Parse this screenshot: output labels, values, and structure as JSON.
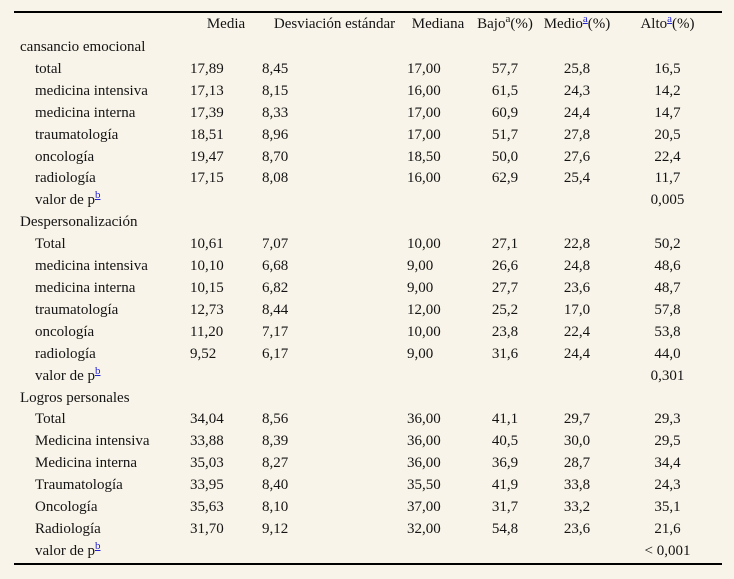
{
  "page": {
    "background_color": "#f8f4e9",
    "text_color": "#141414",
    "link_color": "#2222cc",
    "rule_color": "#000000"
  },
  "table": {
    "p_label": "valor de p",
    "p_sup": "b",
    "header": {
      "row_label": "",
      "columns": [
        {
          "label": "Media",
          "sup": null,
          "suffix": "",
          "sup_is_link": false
        },
        {
          "label": "Desviación estándar",
          "sup": null,
          "suffix": "",
          "sup_is_link": false
        },
        {
          "label": "Mediana",
          "sup": null,
          "suffix": "",
          "sup_is_link": false
        },
        {
          "label": "Bajo",
          "sup": "a",
          "suffix": "(%)",
          "sup_is_link": false
        },
        {
          "label": "Medio",
          "sup": "a",
          "suffix": "(%)",
          "sup_is_link": true
        },
        {
          "label": "Alto",
          "sup": "a",
          "suffix": "(%)",
          "sup_is_link": true
        }
      ]
    },
    "sections": [
      {
        "title": "cansancio emocional",
        "rows": [
          {
            "label": "total",
            "media": "17,89",
            "sd": "8,45",
            "mediana": "17,00",
            "bajo": "57,7",
            "medio": "25,8",
            "alto": "16,5"
          },
          {
            "label": "medicina intensiva",
            "media": "17,13",
            "sd": "8,15",
            "mediana": "16,00",
            "bajo": "61,5",
            "medio": "24,3",
            "alto": "14,2"
          },
          {
            "label": "medicina interna",
            "media": "17,39",
            "sd": "8,33",
            "mediana": "17,00",
            "bajo": "60,9",
            "medio": "24,4",
            "alto": "14,7"
          },
          {
            "label": "traumatología",
            "media": "18,51",
            "sd": "8,96",
            "mediana": "17,00",
            "bajo": "51,7",
            "medio": "27,8",
            "alto": "20,5"
          },
          {
            "label": "oncología",
            "media": "19,47",
            "sd": "8,70",
            "mediana": "18,50",
            "bajo": "50,0",
            "medio": "27,6",
            "alto": "22,4"
          },
          {
            "label": "radiología",
            "media": "17,15",
            "sd": "8,08",
            "mediana": "16,00",
            "bajo": "62,9",
            "medio": "25,4",
            "alto": "11,7"
          }
        ],
        "p_value": "0,005"
      },
      {
        "title": "Despersonalización",
        "rows": [
          {
            "label": "Total",
            "media": "10,61",
            "sd": "7,07",
            "mediana": "10,00",
            "bajo": "27,1",
            "medio": "22,8",
            "alto": "50,2"
          },
          {
            "label": "medicina intensiva",
            "media": "10,10",
            "sd": "6,68",
            "mediana": "9,00",
            "bajo": "26,6",
            "medio": "24,8",
            "alto": "48,6"
          },
          {
            "label": "medicina interna",
            "media": "10,15",
            "sd": "6,82",
            "mediana": "9,00",
            "bajo": "27,7",
            "medio": "23,6",
            "alto": "48,7"
          },
          {
            "label": "traumatología",
            "media": "12,73",
            "sd": "8,44",
            "mediana": "12,00",
            "bajo": "25,2",
            "medio": "17,0",
            "alto": "57,8"
          },
          {
            "label": "oncología",
            "media": "11,20",
            "sd": "7,17",
            "mediana": "10,00",
            "bajo": "23,8",
            "medio": "22,4",
            "alto": "53,8"
          },
          {
            "label": "radiología",
            "media": "9,52",
            "sd": "6,17",
            "mediana": "9,00",
            "bajo": "31,6",
            "medio": "24,4",
            "alto": "44,0"
          }
        ],
        "p_value": "0,301"
      },
      {
        "title": "Logros personales",
        "rows": [
          {
            "label": "Total",
            "media": "34,04",
            "sd": "8,56",
            "mediana": "36,00",
            "bajo": "41,1",
            "medio": "29,7",
            "alto": "29,3"
          },
          {
            "label": "Medicina intensiva",
            "media": "33,88",
            "sd": "8,39",
            "mediana": "36,00",
            "bajo": "40,5",
            "medio": "30,0",
            "alto": "29,5"
          },
          {
            "label": "Medicina interna",
            "media": "35,03",
            "sd": "8,27",
            "mediana": "36,00",
            "bajo": "36,9",
            "medio": "28,7",
            "alto": "34,4"
          },
          {
            "label": "Traumatología",
            "media": "33,95",
            "sd": "8,40",
            "mediana": "35,50",
            "bajo": "41,9",
            "medio": "33,8",
            "alto": "24,3"
          },
          {
            "label": "Oncología",
            "media": "35,63",
            "sd": "8,10",
            "mediana": "37,00",
            "bajo": "31,7",
            "medio": "33,2",
            "alto": "35,1"
          },
          {
            "label": "Radiología",
            "media": "31,70",
            "sd": "9,12",
            "mediana": "32,00",
            "bajo": "54,8",
            "medio": "23,6",
            "alto": "21,6"
          }
        ],
        "p_value": "< 0,001"
      }
    ]
  }
}
